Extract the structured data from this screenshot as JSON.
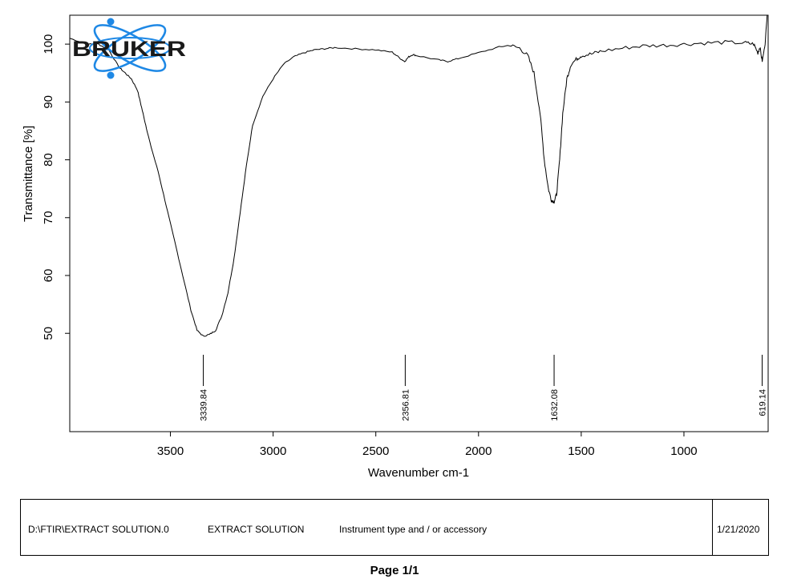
{
  "chart_data": {
    "type": "line",
    "xlabel": "Wavenumber cm-1",
    "ylabel": "Transmittance [%]",
    "xlim": [
      3990,
      590
    ],
    "ylim": [
      33,
      105
    ],
    "x_reversed": true,
    "x_ticks": [
      3500,
      3000,
      2500,
      2000,
      1500,
      1000
    ],
    "y_ticks": [
      50,
      60,
      70,
      80,
      90,
      100
    ],
    "grid": false,
    "series": [
      {
        "x": [
          3990,
          3900,
          3850,
          3800,
          3750,
          3720,
          3690,
          3660,
          3640,
          3620,
          3600,
          3560,
          3520,
          3480,
          3440,
          3400,
          3370,
          3340,
          3310,
          3280,
          3250,
          3220,
          3190,
          3160,
          3130,
          3100,
          3050,
          3000,
          2950,
          2900,
          2850,
          2800,
          2750,
          2700,
          2600,
          2500,
          2420,
          2380,
          2360,
          2340,
          2320,
          2300,
          2200,
          2150,
          2100,
          2000,
          1900,
          1850,
          1800,
          1760,
          1730,
          1700,
          1680,
          1660,
          1645,
          1632,
          1620,
          1605,
          1590,
          1570,
          1550,
          1520,
          1500,
          1450,
          1400,
          1300,
          1200,
          1100,
          1000,
          900,
          800,
          700,
          660,
          640,
          630,
          619,
          605,
          595
        ],
        "y": [
          101,
          100,
          100,
          99,
          96,
          95,
          94,
          92,
          89,
          86,
          83,
          78,
          72,
          66,
          60,
          54,
          50.5,
          49.5,
          49.8,
          50.5,
          53,
          57,
          63,
          71,
          79,
          86,
          91,
          94,
          96.5,
          97.8,
          98.5,
          99,
          99.2,
          99.4,
          99.2,
          99,
          98.6,
          97.5,
          97,
          97.8,
          98.2,
          98,
          97.3,
          97,
          97.5,
          98.5,
          99.5,
          99.8,
          99.3,
          98,
          95,
          88,
          80,
          75,
          73,
          72.8,
          74,
          80,
          88,
          94,
          96.5,
          97.5,
          98,
          98.3,
          98.8,
          99.3,
          99.7,
          99.8,
          100,
          100.2,
          100.3,
          100.2,
          100,
          98.5,
          99.5,
          97,
          100,
          105
        ]
      }
    ],
    "peak_labels": [
      {
        "x": 3339.84,
        "label": "3339.84"
      },
      {
        "x": 2356.81,
        "label": "2356.81"
      },
      {
        "x": 1632.08,
        "label": "1632.08"
      },
      {
        "x": 619.14,
        "label": "619.14"
      }
    ]
  },
  "logo": {
    "text": "BRUKER",
    "color": "#1e88e5"
  },
  "footer": {
    "path": "D:\\FTIR\\EXTRACT SOLUTION.0",
    "sample": "EXTRACT SOLUTION",
    "instrument": "Instrument type and / or accessory",
    "date": "1/21/2020"
  },
  "page_label": "Page 1/1"
}
